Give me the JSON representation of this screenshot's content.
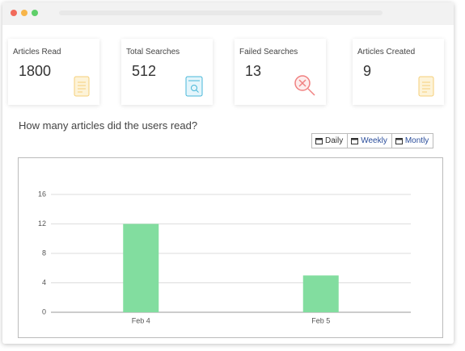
{
  "cards": [
    {
      "label": "Articles Read",
      "value": 1800
    },
    {
      "label": "Total Searches",
      "value": 512
    },
    {
      "label": "Failed Searches",
      "value": 13
    },
    {
      "label": "Articles Created",
      "value": 9
    }
  ],
  "section_title": "How many articles did the users read?",
  "buttons": [
    "Daily",
    "Weekly",
    "Montly"
  ],
  "chart_data": {
    "type": "bar",
    "categories": [
      "Feb 4",
      "Feb 5"
    ],
    "values": [
      12,
      5
    ],
    "color": "#82dd9f",
    "ylim": [
      0,
      16
    ],
    "yticks": [
      0,
      4,
      8,
      12,
      16
    ],
    "grid": true
  }
}
